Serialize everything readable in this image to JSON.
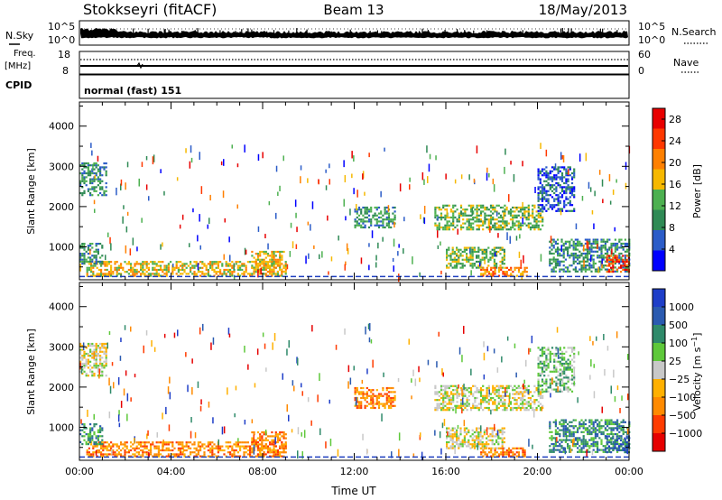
{
  "header": {
    "station": "Stokkseyri (fitACF)",
    "beam": "Beam 13",
    "date": "18/May/2013"
  },
  "status_panels": {
    "nsky_label": "N.Sky",
    "nsky_scale_top": "10^5",
    "nsky_scale_bottom": "10^0",
    "nsearch_label": "N.Search",
    "nsearch_scale_top": "10^5",
    "nsearch_scale_bottom": "10^0",
    "freq_label": "Freq.",
    "freq_unit": "[MHz]",
    "freq_top": "18",
    "freq_bottom": "8",
    "nave_label": "Nave",
    "nave_top": "60",
    "nave_bottom": "0",
    "cpid_label": "CPID",
    "cpid_value": "normal (fast) 151"
  },
  "colors": {
    "power": [
      "#0000ff",
      "#2b5cc8",
      "#2f8a55",
      "#4db050",
      "#f6b800",
      "#ff8000",
      "#ff3800",
      "#e80000"
    ],
    "velocity": [
      "#e60000",
      "#ff3c00",
      "#ff8a00",
      "#ffb000",
      "#c8c8c8",
      "#5ec83a",
      "#2f8a6a",
      "#2a5ab0",
      "#1e3ec8"
    ]
  },
  "chart_data": [
    {
      "type": "heatmap",
      "title": "",
      "xlabel": "",
      "ylabel": "Slant Range [km]",
      "xlim": [
        0,
        24
      ],
      "ylim": [
        180,
        4600
      ],
      "x_ticks": [
        "00:00",
        "04:00",
        "08:00",
        "12:00",
        "16:00",
        "20:00",
        "00:00"
      ],
      "y_ticks": [
        1000,
        2000,
        3000,
        4000
      ],
      "colorbar": {
        "label": "Power [dB]",
        "ticks": [
          4,
          8,
          12,
          16,
          20,
          24,
          28
        ],
        "range": [
          0,
          30
        ]
      },
      "regions": [
        {
          "t0": 0.0,
          "t1": 1.2,
          "r0": 2300,
          "r1": 3100,
          "level": 2
        },
        {
          "t0": 0.3,
          "t1": 9.0,
          "r0": 300,
          "r1": 650,
          "level": 4
        },
        {
          "t0": 0.0,
          "t1": 1.0,
          "r0": 600,
          "r1": 1100,
          "level": 2
        },
        {
          "t0": 7.5,
          "t1": 9.0,
          "r0": 400,
          "r1": 900,
          "level": 4
        },
        {
          "t0": 12.0,
          "t1": 13.8,
          "r0": 1500,
          "r1": 2000,
          "level": 2
        },
        {
          "t0": 15.5,
          "t1": 20.2,
          "r0": 1450,
          "r1": 2050,
          "level": 3
        },
        {
          "t0": 16.0,
          "t1": 18.6,
          "r0": 500,
          "r1": 1000,
          "level": 3
        },
        {
          "t0": 17.5,
          "t1": 19.5,
          "r0": 300,
          "r1": 500,
          "level": 5
        },
        {
          "t0": 20.0,
          "t1": 21.6,
          "r0": 1900,
          "r1": 3000,
          "level": 1
        },
        {
          "t0": 20.5,
          "t1": 24.0,
          "r0": 400,
          "r1": 1200,
          "level": 2
        },
        {
          "t0": 23.0,
          "t1": 24.0,
          "r0": 400,
          "r1": 800,
          "level": 6
        }
      ]
    },
    {
      "type": "heatmap",
      "title": "",
      "xlabel": "Time UT",
      "ylabel": "Slant Range [km]",
      "xlim": [
        0,
        24
      ],
      "ylim": [
        180,
        4600
      ],
      "x_ticks": [
        "00:00",
        "04:00",
        "08:00",
        "12:00",
        "16:00",
        "20:00",
        "00:00"
      ],
      "y_ticks": [
        1000,
        2000,
        3000,
        4000
      ],
      "colorbar": {
        "label": "Velocity [m s^-1]",
        "ticks": [
          "1000",
          "500",
          "100",
          "25",
          "−25",
          "−100",
          "−500",
          "−1000"
        ]
      },
      "regions": [
        {
          "t0": 0.0,
          "t1": 1.2,
          "r0": 2300,
          "r1": 3100,
          "level": 4
        },
        {
          "t0": 0.3,
          "t1": 9.0,
          "r0": 300,
          "r1": 650,
          "level": 2
        },
        {
          "t0": 0.0,
          "t1": 1.0,
          "r0": 600,
          "r1": 1100,
          "level": 6
        },
        {
          "t0": 7.5,
          "t1": 9.0,
          "r0": 400,
          "r1": 900,
          "level": 2
        },
        {
          "t0": 12.0,
          "t1": 13.8,
          "r0": 1500,
          "r1": 2000,
          "level": 2
        },
        {
          "t0": 15.5,
          "t1": 20.2,
          "r0": 1450,
          "r1": 2050,
          "level": 4
        },
        {
          "t0": 16.0,
          "t1": 18.6,
          "r0": 500,
          "r1": 1000,
          "level": 4
        },
        {
          "t0": 17.5,
          "t1": 19.5,
          "r0": 300,
          "r1": 500,
          "level": 2
        },
        {
          "t0": 20.0,
          "t1": 21.6,
          "r0": 1900,
          "r1": 3000,
          "level": 5
        },
        {
          "t0": 20.5,
          "t1": 24.0,
          "r0": 400,
          "r1": 1200,
          "level": 6
        },
        {
          "t0": 23.0,
          "t1": 24.0,
          "r0": 400,
          "r1": 800,
          "level": 7
        }
      ]
    }
  ]
}
